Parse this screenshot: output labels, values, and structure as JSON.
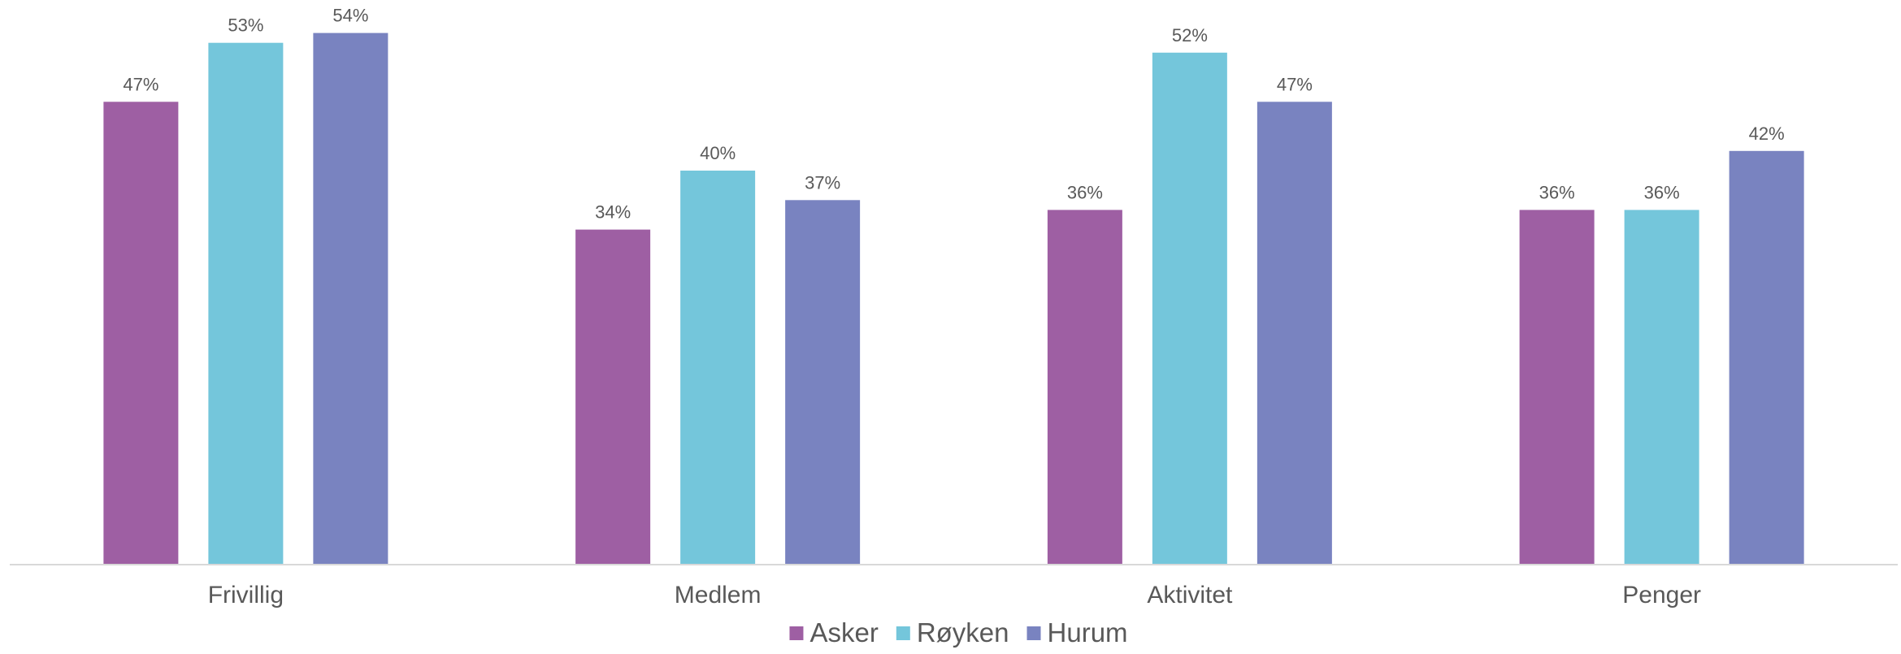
{
  "chart_data": {
    "type": "bar",
    "categories": [
      "Frivillig",
      "Medlem",
      "Aktivitet",
      "Penger"
    ],
    "series": [
      {
        "name": "Asker",
        "values": [
          47,
          34,
          36,
          36
        ],
        "value_labels": [
          "47%",
          "34%",
          "36%",
          "36%"
        ],
        "color": "#9e5fa3"
      },
      {
        "name": "Røyken",
        "values": [
          53,
          40,
          52,
          36
        ],
        "value_labels": [
          "53%",
          "40%",
          "52%",
          "36%"
        ],
        "color": "#74c6db"
      },
      {
        "name": "Hurum",
        "values": [
          54,
          37,
          47,
          42
        ],
        "value_labels": [
          "54%",
          "37%",
          "47%",
          "42%"
        ],
        "color": "#7983c0"
      }
    ],
    "title": "",
    "xlabel": "",
    "ylabel": "",
    "ylim": [
      0,
      55
    ],
    "grid": false,
    "legend_position": "bottom-center",
    "axis_color": "#d9d9d9"
  }
}
